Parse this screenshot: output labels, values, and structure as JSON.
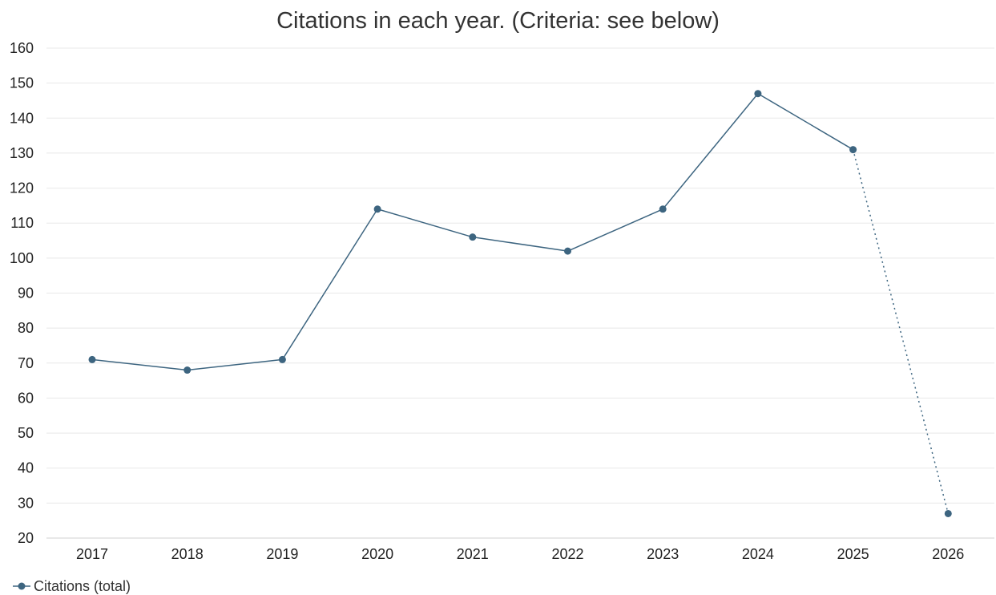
{
  "chart_data": {
    "type": "line",
    "title": "Citations in each year. (Criteria: see below)",
    "categories": [
      "2017",
      "2018",
      "2019",
      "2020",
      "2021",
      "2022",
      "2023",
      "2024",
      "2025",
      "2026"
    ],
    "yticks": [
      "20",
      "30",
      "40",
      "50",
      "60",
      "70",
      "80",
      "90",
      "100",
      "110",
      "120",
      "130",
      "140",
      "150",
      "160"
    ],
    "ylim": [
      20,
      160
    ],
    "grid": true,
    "legend_position": "bottom-left",
    "series": [
      {
        "name": "Citations (total)",
        "values": [
          71,
          68,
          71,
          114,
          106,
          102,
          114,
          147,
          131,
          27
        ],
        "color": "#3d6580",
        "dotted_from_index": 8
      }
    ]
  }
}
